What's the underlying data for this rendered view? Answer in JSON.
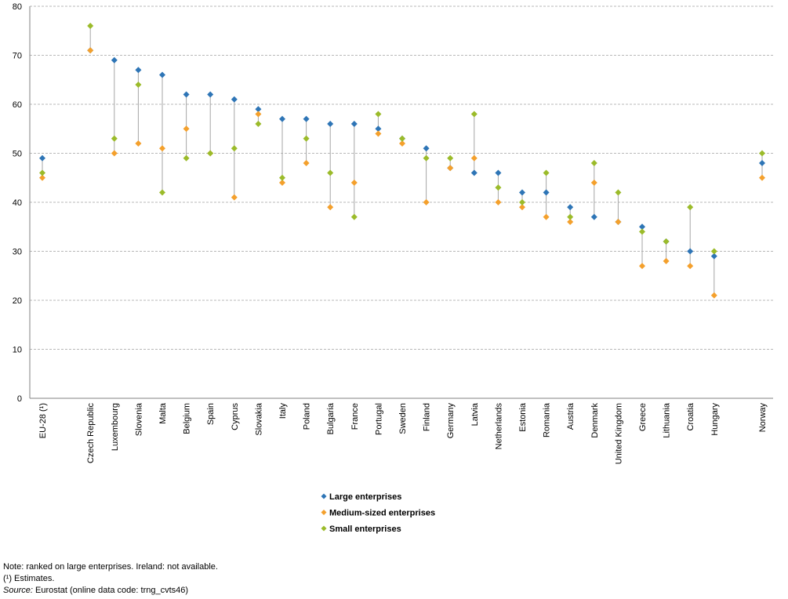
{
  "chart_data": {
    "type": "scatter",
    "title": "",
    "xlabel": "",
    "ylabel": "",
    "ylim": [
      0,
      80
    ],
    "ytick_step": 10,
    "grid": true,
    "grid_style": "dashed-horizontal",
    "legend_position": "bottom-center",
    "range_lines": true,
    "categories": [
      "EU-28 (¹)",
      "Czech Republic",
      "Luxembourg",
      "Slovenia",
      "Malta",
      "Belgium",
      "Spain",
      "Cyprus",
      "Slovakia",
      "Italy",
      "Poland",
      "Bulgaria",
      "France",
      "Portugal",
      "Sweden",
      "Finland",
      "Germany",
      "Latvia",
      "Netherlands",
      "Estonia",
      "Romania",
      "Austria",
      "Denmark",
      "United Kingdom",
      "Greece",
      "Lithuania",
      "Croatia",
      "Hungary",
      "Norway"
    ],
    "category_gap_after": [
      "EU-28 (¹)",
      "Hungary"
    ],
    "series": [
      {
        "name": "Large enterprises",
        "color": "#2e75b6",
        "values": [
          49,
          71,
          69,
          67,
          66,
          62,
          62,
          61,
          59,
          57,
          57,
          56,
          56,
          55,
          53,
          51,
          47,
          46,
          46,
          42,
          42,
          39,
          37,
          36,
          35,
          32,
          30,
          29,
          48
        ]
      },
      {
        "name": "Medium-sized enterprises",
        "color": "#f4a02c",
        "values": [
          45,
          71,
          50,
          52,
          51,
          55,
          50,
          41,
          58,
          44,
          48,
          39,
          44,
          54,
          52,
          40,
          47,
          49,
          40,
          39,
          37,
          36,
          44,
          36,
          27,
          28,
          27,
          21,
          45
        ]
      },
      {
        "name": "Small enterprises",
        "color": "#9bbb2a",
        "values": [
          46,
          76,
          53,
          64,
          42,
          49,
          50,
          51,
          56,
          45,
          53,
          46,
          37,
          58,
          53,
          49,
          49,
          58,
          43,
          40,
          46,
          37,
          48,
          42,
          34,
          32,
          39,
          30,
          50
        ]
      }
    ]
  },
  "notes": {
    "line1": "Note: ranked on large enterprises. Ireland: not available.",
    "line2": "(¹) Estimates.",
    "source_label": "Source:",
    "source_text": "Eurostat (online data code: trng_cvts46)"
  }
}
